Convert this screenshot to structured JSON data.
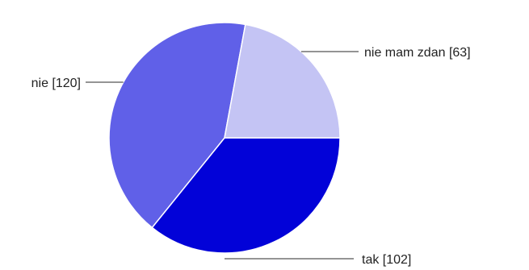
{
  "chart_data": {
    "type": "pie",
    "slices": [
      {
        "label": "tak [102]",
        "value": 102,
        "color": "#0202d8"
      },
      {
        "label": "nie [120]",
        "value": 120,
        "color": "#6060e8"
      },
      {
        "label": "nie mam zdan [63]",
        "value": 63,
        "color": "#c4c4f4"
      }
    ],
    "legend": "none",
    "labels": "outside-with-leader-lines"
  }
}
